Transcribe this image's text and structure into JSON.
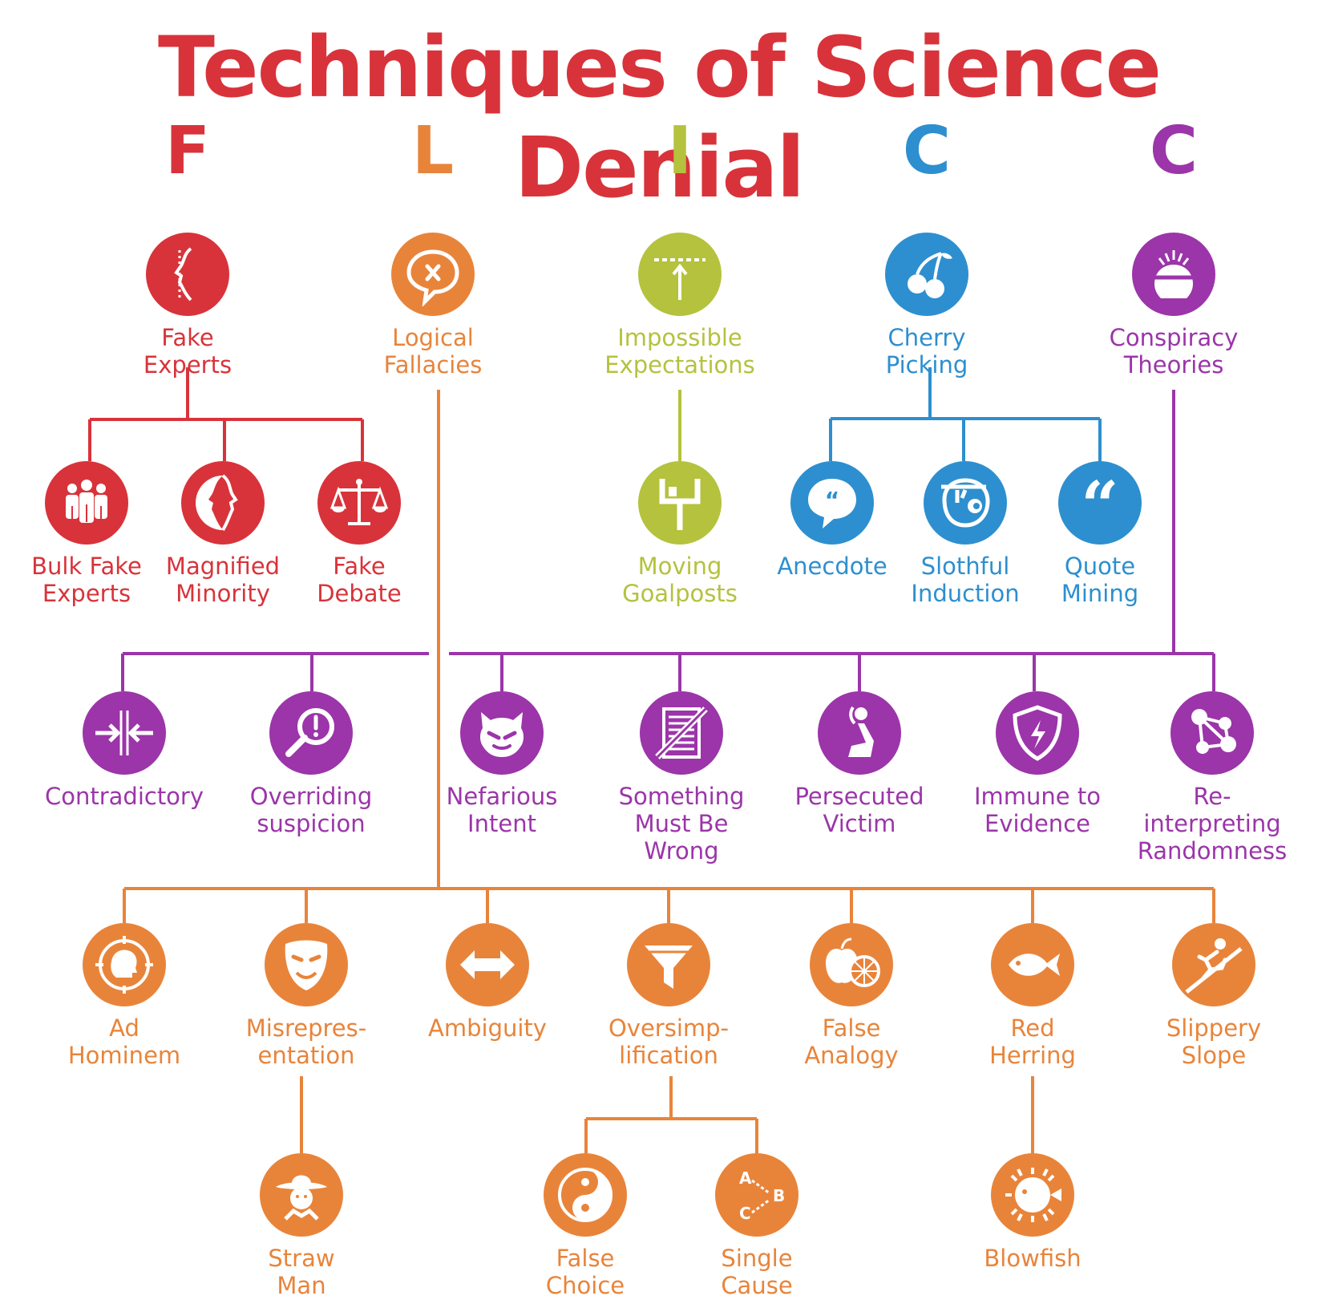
{
  "title": "Techniques of Science Denial",
  "colors": {
    "F": "#d8333a",
    "L": "#e8843a",
    "I": "#b5c23d",
    "C1": "#2d8fcf",
    "C2": "#9b35a9"
  },
  "letters": [
    {
      "text": "F",
      "color": "F"
    },
    {
      "text": "L",
      "color": "L"
    },
    {
      "text": "I",
      "color": "I"
    },
    {
      "text": "C",
      "color": "C1"
    },
    {
      "text": "C",
      "color": "C2"
    }
  ],
  "nodes": [
    {
      "id": "fake-experts",
      "label": "Fake\nExperts",
      "color": "F",
      "icon": "face-profile-icon"
    },
    {
      "id": "logical-fallacies",
      "label": "Logical\nFallacies",
      "color": "L",
      "icon": "speech-bubble-x-icon"
    },
    {
      "id": "impossible-expectations",
      "label": "Impossible\nExpectations",
      "color": "I",
      "icon": "arrow-to-line-icon"
    },
    {
      "id": "cherry-picking",
      "label": "Cherry\nPicking",
      "color": "C1",
      "icon": "cherry-icon"
    },
    {
      "id": "conspiracy-theories",
      "label": "Conspiracy\nTheories",
      "color": "C2",
      "icon": "head-lightning-icon"
    },
    {
      "id": "bulk-fake-experts",
      "label": "Bulk Fake\nExperts",
      "color": "F",
      "icon": "crowd-icon"
    },
    {
      "id": "magnified-minority",
      "label": "Magnified\nMinority",
      "color": "F",
      "icon": "faces-icon"
    },
    {
      "id": "fake-debate",
      "label": "Fake\nDebate",
      "color": "F",
      "icon": "scales-icon"
    },
    {
      "id": "moving-goalposts",
      "label": "Moving\nGoalposts",
      "color": "I",
      "icon": "goalpost-icon"
    },
    {
      "id": "anecdote",
      "label": "Anecdote",
      "color": "C1",
      "icon": "speech-quote-icon"
    },
    {
      "id": "slothful-induction",
      "label": "Slothful\nInduction",
      "color": "C1",
      "icon": "sloth-icon"
    },
    {
      "id": "quote-mining",
      "label": "Quote\nMining",
      "color": "C1",
      "icon": "quote-marks-icon"
    },
    {
      "id": "contradictory",
      "label": "Contradictory",
      "color": "C2",
      "icon": "opposing-arrows-icon"
    },
    {
      "id": "overriding-suspicion",
      "label": "Overriding\nsuspicion",
      "color": "C2",
      "icon": "magnifier-exclamation-icon"
    },
    {
      "id": "nefarious-intent",
      "label": "Nefarious\nIntent",
      "color": "C2",
      "icon": "devil-face-icon"
    },
    {
      "id": "something-must-be-wrong",
      "label": "Something\nMust Be Wrong",
      "color": "C2",
      "icon": "crossed-document-icon"
    },
    {
      "id": "persecuted-victim",
      "label": "Persecuted\nVictim",
      "color": "C2",
      "icon": "kneeling-person-icon"
    },
    {
      "id": "immune-to-evidence",
      "label": "Immune to\nEvidence",
      "color": "C2",
      "icon": "shield-lightning-icon"
    },
    {
      "id": "re-interpreting-randomness",
      "label": "Re-interpreting\nRandomness",
      "color": "C2",
      "icon": "connected-dots-icon"
    },
    {
      "id": "ad-hominem",
      "label": "Ad\nHominem",
      "color": "L",
      "icon": "target-head-icon"
    },
    {
      "id": "misrepresentation",
      "label": "Misrepres-\nentation",
      "color": "L",
      "icon": "mask-icon"
    },
    {
      "id": "ambiguity",
      "label": "Ambiguity",
      "color": "L",
      "icon": "double-arrow-icon"
    },
    {
      "id": "oversimplification",
      "label": "Oversimp-\nlification",
      "color": "L",
      "icon": "funnel-icon"
    },
    {
      "id": "false-analogy",
      "label": "False\nAnalogy",
      "color": "L",
      "icon": "apple-orange-icon"
    },
    {
      "id": "red-herring",
      "label": "Red\nHerring",
      "color": "L",
      "icon": "fish-icon"
    },
    {
      "id": "slippery-slope",
      "label": "Slippery\nSlope",
      "color": "L",
      "icon": "slipping-person-icon"
    },
    {
      "id": "straw-man",
      "label": "Straw\nMan",
      "color": "L",
      "icon": "scarecrow-icon"
    },
    {
      "id": "false-choice",
      "label": "False\nChoice",
      "color": "L",
      "icon": "yin-yang-icon"
    },
    {
      "id": "single-cause",
      "label": "Single\nCause",
      "color": "L",
      "icon": "abc-arrows-icon"
    },
    {
      "id": "blowfish",
      "label": "Blowfish",
      "color": "L",
      "icon": "blowfish-icon"
    }
  ]
}
